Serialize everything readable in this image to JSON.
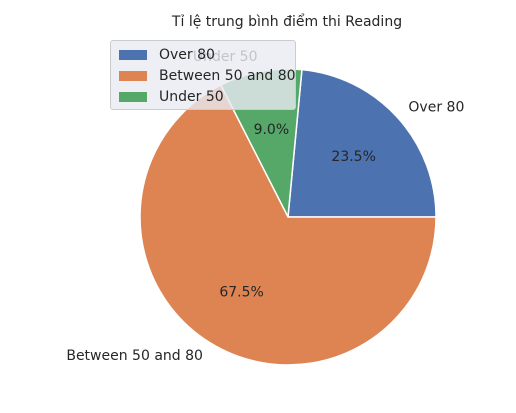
{
  "chart_data": {
    "type": "pie",
    "title": "Tỉ lệ trung bình điểm thi Reading",
    "slices": [
      {
        "label": "Over 80",
        "value": 23.5,
        "pct_label": "23.5%",
        "color": "#4c72b0"
      },
      {
        "label": "Under 50",
        "value": 9.0,
        "pct_label": "9.0%",
        "color": "#55a868"
      },
      {
        "label": "Between 50 and 80",
        "value": 67.5,
        "pct_label": "67.5%",
        "color": "#dd8452"
      }
    ],
    "legend": {
      "placement": "upper-left",
      "entries": [
        {
          "label": "Over 80",
          "color": "#4c72b0"
        },
        {
          "label": "Between 50 and 80",
          "color": "#dd8452"
        },
        {
          "label": "Under 50",
          "color": "#55a868"
        }
      ]
    }
  }
}
